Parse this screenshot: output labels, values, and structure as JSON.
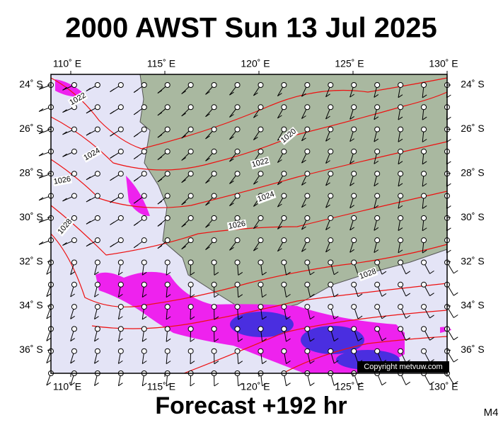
{
  "header": {
    "title": "2000 AWST Sun 13 Jul 2025"
  },
  "footer": {
    "forecast": "Forecast +192 hr",
    "model": "M4"
  },
  "map": {
    "lon_ticks": [
      {
        "value": 110,
        "label": "110˚ E"
      },
      {
        "value": 115,
        "label": "115˚ E"
      },
      {
        "value": 120,
        "label": "120˚ E"
      },
      {
        "value": 125,
        "label": "125˚ E"
      },
      {
        "value": 130,
        "label": "130˚ E"
      }
    ],
    "lat_ticks": [
      {
        "value": 24,
        "label": "24˚ S"
      },
      {
        "value": 26,
        "label": "26˚ S"
      },
      {
        "value": 28,
        "label": "28˚ S"
      },
      {
        "value": 30,
        "label": "30˚ S"
      },
      {
        "value": 32,
        "label": "32˚ S"
      },
      {
        "value": 34,
        "label": "34˚ S"
      },
      {
        "value": 36,
        "label": "36˚ S"
      }
    ],
    "isobar_labels": [
      "1022",
      "1024",
      "1026",
      "1028",
      "1020",
      "1022",
      "1024",
      "1026",
      "1028"
    ],
    "copyright": "Copyright metvuw.com"
  }
}
